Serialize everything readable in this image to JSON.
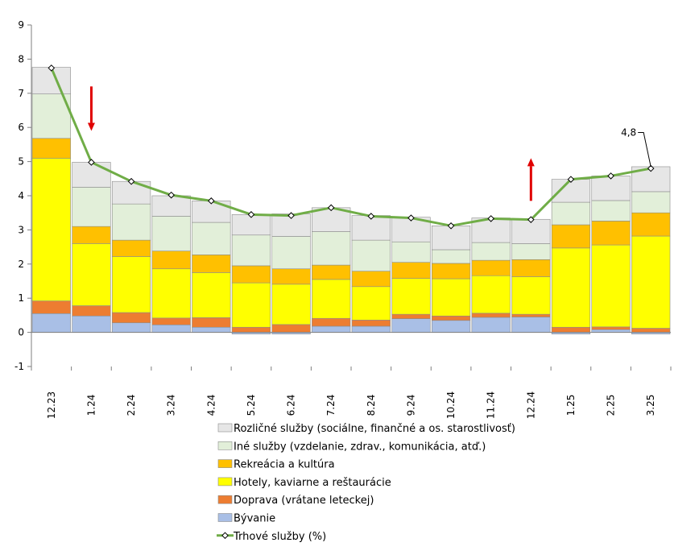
{
  "chart_data": {
    "type": "bar",
    "stacked": true,
    "categories": [
      "12.23",
      "1.24",
      "2.24",
      "3.24",
      "4.24",
      "5.24",
      "6.24",
      "7.24",
      "8.24",
      "9.24",
      "10.24",
      "11.24",
      "12.24",
      "1.25",
      "2.25",
      "3.25"
    ],
    "ylim": [
      -1,
      9
    ],
    "yticks": [
      -1,
      0,
      1,
      2,
      3,
      4,
      5,
      6,
      7,
      8,
      9
    ],
    "grid": false,
    "legend_position": "bottom",
    "series": [
      {
        "name": "Bývanie",
        "color": "#a9bfe6",
        "values": [
          0.55,
          0.48,
          0.28,
          0.22,
          0.15,
          -0.05,
          -0.05,
          0.18,
          0.18,
          0.4,
          0.35,
          0.44,
          0.45,
          -0.05,
          0.08,
          -0.05
        ]
      },
      {
        "name": "Doprava (vrátane leteckej)",
        "color": "#ed7d31",
        "values": [
          0.37,
          0.3,
          0.3,
          0.2,
          0.28,
          0.15,
          0.23,
          0.23,
          0.18,
          0.13,
          0.13,
          0.12,
          0.08,
          0.15,
          0.08,
          0.12
        ]
      },
      {
        "name": "Hotely, kaviarne a reštaurácie",
        "color": "#ffff00",
        "values": [
          4.18,
          1.82,
          1.64,
          1.44,
          1.32,
          1.3,
          1.18,
          1.14,
          0.98,
          1.05,
          1.09,
          1.1,
          1.1,
          2.32,
          2.4,
          2.7
        ]
      },
      {
        "name": "Rekreácia a kultúra",
        "color": "#ffc000",
        "values": [
          0.58,
          0.5,
          0.48,
          0.52,
          0.52,
          0.5,
          0.45,
          0.42,
          0.45,
          0.47,
          0.45,
          0.45,
          0.5,
          0.68,
          0.7,
          0.68
        ]
      },
      {
        "name": "Iné služby (vzdelanie, zdrav., komunikácia, atď.)",
        "color": "#e2efd9",
        "values": [
          1.3,
          1.15,
          1.06,
          1.02,
          0.95,
          0.9,
          0.95,
          0.98,
          0.91,
          0.6,
          0.4,
          0.52,
          0.47,
          0.66,
          0.6,
          0.62
        ]
      },
      {
        "name": "Rozličné služby (sociálne, finančné a os. starostlivosť)",
        "color": "#e6e6e6",
        "values": [
          0.78,
          0.73,
          0.66,
          0.6,
          0.63,
          0.6,
          0.66,
          0.7,
          0.72,
          0.72,
          0.7,
          0.72,
          0.71,
          0.67,
          0.72,
          0.73
        ]
      }
    ],
    "line": {
      "name": "Trhové služby (%)",
      "color": "#70ad47",
      "values": [
        7.74,
        4.98,
        4.42,
        4.02,
        3.85,
        3.45,
        3.42,
        3.65,
        3.4,
        3.35,
        3.12,
        3.33,
        3.3,
        4.48,
        4.58,
        4.8
      ]
    },
    "annotations": [
      {
        "text": "4,8",
        "category": "3.25",
        "value": 4.8
      }
    ],
    "arrows": [
      {
        "category": "1.24",
        "direction": "down",
        "color": "#e00000",
        "from": 7.2,
        "to": 5.9
      },
      {
        "category": "12.24",
        "direction": "up",
        "color": "#e00000",
        "from": 3.85,
        "to": 5.1
      }
    ]
  }
}
